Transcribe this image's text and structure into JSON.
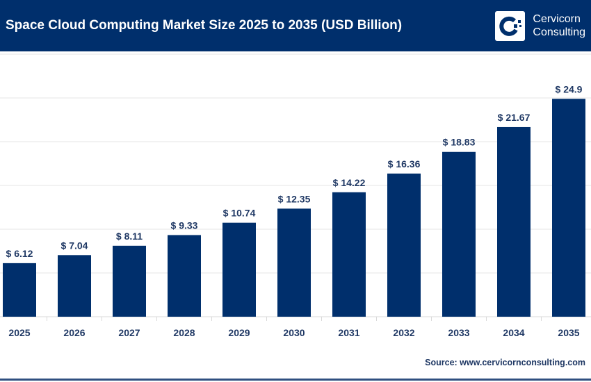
{
  "header": {
    "title": "Space Cloud Computing Market Size 2025 to 2035 (USD Billion)"
  },
  "logo": {
    "line1": "Cervicorn",
    "line2": "Consulting"
  },
  "source": "Source: www.cervicornconsulting.com",
  "colors": {
    "bar": "#002f6c",
    "header": "#002f6c",
    "label": "#1f3864"
  },
  "chart_data": {
    "type": "bar",
    "title": "Space Cloud Computing Market Size 2025 to 2035 (USD Billion)",
    "categories": [
      "2025",
      "2026",
      "2027",
      "2028",
      "2029",
      "2030",
      "2031",
      "2032",
      "2033",
      "2034",
      "2035"
    ],
    "values": [
      6.12,
      7.04,
      8.11,
      9.33,
      10.74,
      12.35,
      14.22,
      16.36,
      18.83,
      21.67,
      24.9
    ],
    "data_labels": [
      "$ 6.12",
      "$ 7.04",
      "$ 8.11",
      "$ 9.33",
      "$ 10.74",
      "$ 12.35",
      "$ 14.22",
      "$ 16.36",
      "$ 18.83",
      "$ 21.67",
      "$ 24.9"
    ],
    "xlabel": "",
    "ylabel": "",
    "ylim": [
      0,
      30
    ],
    "grid": true,
    "legend": "none"
  }
}
